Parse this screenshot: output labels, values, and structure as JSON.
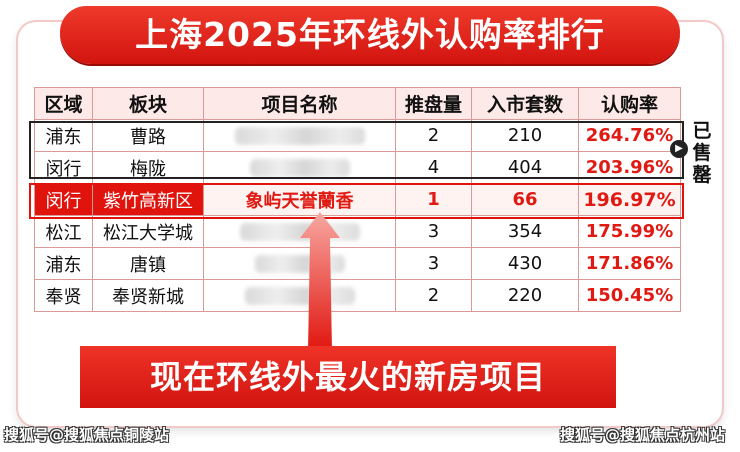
{
  "title": "上海2025年环线外认购率排行",
  "table": {
    "headers": [
      "区域",
      "板块",
      "项目名称",
      "推盘量",
      "入市套数",
      "认购率"
    ],
    "rows": [
      {
        "zone": "浦东",
        "block": "曹路",
        "project": "",
        "batches": "2",
        "units": "210",
        "rate": "264.76%"
      },
      {
        "zone": "闵行",
        "block": "梅陇",
        "project": "",
        "batches": "4",
        "units": "404",
        "rate": "203.96%"
      },
      {
        "zone": "闵行",
        "block": "紫竹高新区",
        "project": "象屿天誉蘭香",
        "batches": "1",
        "units": "66",
        "rate": "196.97%"
      },
      {
        "zone": "松江",
        "block": "松江大学城",
        "project": "",
        "batches": "3",
        "units": "354",
        "rate": "175.99%"
      },
      {
        "zone": "浦东",
        "block": "唐镇",
        "project": "",
        "batches": "3",
        "units": "430",
        "rate": "171.86%"
      },
      {
        "zone": "奉贤",
        "block": "奉贤新城",
        "project": "",
        "batches": "2",
        "units": "220",
        "rate": "150.45%"
      }
    ]
  },
  "sold_label": "已售罄",
  "callout": "现在环线外最火的新房项目",
  "watermark_left": "搜狐号@搜狐焦点铜陵站",
  "watermark_right": "搜狐号@搜狐焦点杭州站",
  "colors": {
    "accent": "#e0140d",
    "header_bg": "#fde9e7"
  }
}
